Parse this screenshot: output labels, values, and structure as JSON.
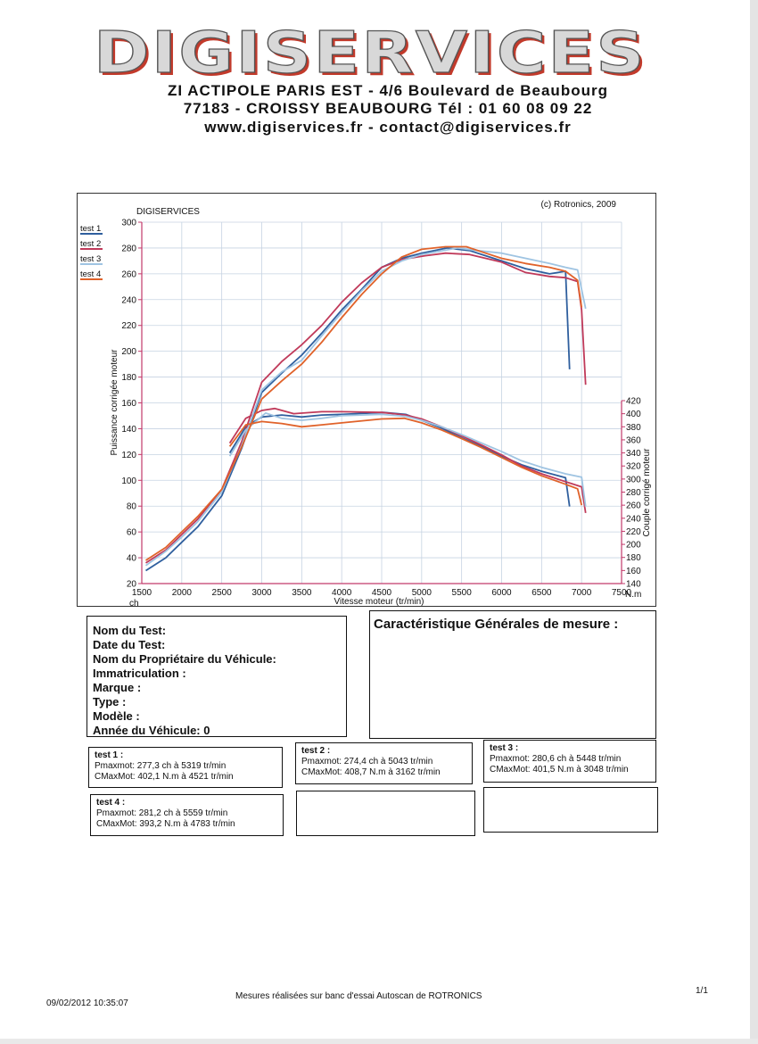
{
  "header": {
    "logo_text": "DIGISERVICES",
    "address_line1": "ZI ACTIPOLE PARIS EST - 4/6 Boulevard de Beaubourg",
    "address_line2": "77183 - CROISSY BEAUBOURG Tél : 01 60 08 09 22",
    "address_line3": "www.digiservices.fr - contact@digiservices.fr"
  },
  "chart_data": {
    "type": "line",
    "title": "DIGISERVICES",
    "copyright": "(c) Rotronics, 2009",
    "xlabel": "Vitesse moteur (tr/min)",
    "ylabel_left": "Puissance corrigée moteur",
    "ylabel_right": "Couple corrigé moteur",
    "unit_left": "ch",
    "unit_right": "N.m",
    "xlim": [
      1500,
      7500
    ],
    "ylim_left": [
      20,
      300
    ],
    "ylim_right": [
      140,
      420
    ],
    "x_ticks": [
      1500,
      2000,
      2500,
      3000,
      3500,
      4000,
      4500,
      5000,
      5500,
      6000,
      6500,
      7000,
      7500
    ],
    "y_left_ticks": [
      20,
      40,
      60,
      80,
      100,
      120,
      140,
      160,
      180,
      200,
      220,
      240,
      260,
      280,
      300
    ],
    "y_right_ticks": [
      140,
      160,
      180,
      200,
      220,
      240,
      260,
      280,
      300,
      320,
      340,
      360,
      380,
      400,
      420
    ],
    "grid": true,
    "legend_position": "top-left",
    "series": [
      {
        "name": "test 1",
        "color": "#2f5f9e",
        "power": [
          [
            1550,
            30
          ],
          [
            1800,
            40
          ],
          [
            2000,
            52
          ],
          [
            2200,
            64
          ],
          [
            2500,
            88
          ],
          [
            2750,
            125
          ],
          [
            3000,
            168
          ],
          [
            3250,
            183
          ],
          [
            3500,
            197
          ],
          [
            3750,
            214
          ],
          [
            4000,
            232
          ],
          [
            4250,
            248
          ],
          [
            4500,
            265
          ],
          [
            4750,
            272
          ],
          [
            5000,
            276
          ],
          [
            5319,
            280
          ],
          [
            5600,
            278
          ],
          [
            5800,
            274
          ],
          [
            6000,
            270
          ],
          [
            6300,
            264
          ],
          [
            6600,
            260
          ],
          [
            6800,
            262
          ],
          [
            6850,
            186
          ]
        ],
        "torque": [
          [
            2600,
            340
          ],
          [
            2800,
            380
          ],
          [
            3000,
            395
          ],
          [
            3250,
            398
          ],
          [
            3500,
            395
          ],
          [
            3750,
            398
          ],
          [
            4000,
            399
          ],
          [
            4521,
            402
          ],
          [
            4800,
            399
          ],
          [
            5000,
            390
          ],
          [
            5250,
            378
          ],
          [
            5500,
            363
          ],
          [
            5750,
            350
          ],
          [
            6000,
            335
          ],
          [
            6250,
            322
          ],
          [
            6500,
            312
          ],
          [
            6800,
            302
          ],
          [
            6850,
            258
          ]
        ]
      },
      {
        "name": "test 2",
        "color": "#c03a5a",
        "power": [
          [
            1550,
            36
          ],
          [
            1800,
            46
          ],
          [
            2000,
            58
          ],
          [
            2200,
            70
          ],
          [
            2500,
            93
          ],
          [
            2750,
            130
          ],
          [
            3000,
            176
          ],
          [
            3250,
            192
          ],
          [
            3500,
            205
          ],
          [
            3750,
            220
          ],
          [
            4000,
            238
          ],
          [
            4250,
            253
          ],
          [
            4500,
            265
          ],
          [
            4750,
            271
          ],
          [
            5043,
            274
          ],
          [
            5300,
            276
          ],
          [
            5600,
            275
          ],
          [
            5800,
            272
          ],
          [
            6000,
            269
          ],
          [
            6300,
            261
          ],
          [
            6600,
            258
          ],
          [
            6800,
            257
          ],
          [
            6950,
            254
          ],
          [
            7000,
            232
          ],
          [
            7050,
            174
          ]
        ],
        "torque": [
          [
            2600,
            355
          ],
          [
            2800,
            393
          ],
          [
            3000,
            405
          ],
          [
            3162,
            408
          ],
          [
            3400,
            400
          ],
          [
            3750,
            403
          ],
          [
            4000,
            403
          ],
          [
            4500,
            402
          ],
          [
            4800,
            398
          ],
          [
            5000,
            392
          ],
          [
            5250,
            380
          ],
          [
            5500,
            366
          ],
          [
            5750,
            352
          ],
          [
            6000,
            337
          ],
          [
            6250,
            320
          ],
          [
            6500,
            308
          ],
          [
            6800,
            296
          ],
          [
            7000,
            288
          ],
          [
            7050,
            248
          ]
        ]
      },
      {
        "name": "test 3",
        "color": "#9fc4e2",
        "power": [
          [
            1550,
            34
          ],
          [
            1800,
            45
          ],
          [
            2000,
            56
          ],
          [
            2200,
            68
          ],
          [
            2500,
            91
          ],
          [
            2750,
            127
          ],
          [
            3000,
            170
          ],
          [
            3250,
            184
          ],
          [
            3500,
            193
          ],
          [
            3750,
            212
          ],
          [
            4000,
            230
          ],
          [
            4250,
            247
          ],
          [
            4500,
            262
          ],
          [
            4750,
            270
          ],
          [
            5000,
            275
          ],
          [
            5448,
            280
          ],
          [
            5700,
            278
          ],
          [
            6000,
            276
          ],
          [
            6300,
            272
          ],
          [
            6600,
            268
          ],
          [
            6800,
            265
          ],
          [
            6950,
            263
          ],
          [
            7050,
            233
          ]
        ],
        "torque": [
          [
            2600,
            335
          ],
          [
            2800,
            375
          ],
          [
            3048,
            401
          ],
          [
            3250,
            393
          ],
          [
            3500,
            390
          ],
          [
            3750,
            393
          ],
          [
            4000,
            397
          ],
          [
            4500,
            399
          ],
          [
            4800,
            396
          ],
          [
            5000,
            390
          ],
          [
            5250,
            380
          ],
          [
            5500,
            368
          ],
          [
            5750,
            355
          ],
          [
            6000,
            342
          ],
          [
            6250,
            328
          ],
          [
            6500,
            318
          ],
          [
            6800,
            308
          ],
          [
            7000,
            303
          ],
          [
            7050,
            258
          ]
        ]
      },
      {
        "name": "test 4",
        "color": "#e0622a",
        "power": [
          [
            1550,
            38
          ],
          [
            1800,
            48
          ],
          [
            2000,
            60
          ],
          [
            2200,
            72
          ],
          [
            2500,
            93
          ],
          [
            2750,
            126
          ],
          [
            3000,
            163
          ],
          [
            3250,
            177
          ],
          [
            3500,
            190
          ],
          [
            3750,
            207
          ],
          [
            4000,
            226
          ],
          [
            4250,
            244
          ],
          [
            4500,
            260
          ],
          [
            4750,
            273
          ],
          [
            5000,
            279
          ],
          [
            5300,
            281
          ],
          [
            5559,
            281
          ],
          [
            5800,
            276
          ],
          [
            6000,
            272
          ],
          [
            6300,
            268
          ],
          [
            6600,
            265
          ],
          [
            6800,
            262
          ],
          [
            6950,
            255
          ],
          [
            7000,
            234
          ]
        ],
        "torque": [
          [
            2600,
            350
          ],
          [
            2800,
            383
          ],
          [
            3000,
            388
          ],
          [
            3250,
            385
          ],
          [
            3500,
            380
          ],
          [
            3750,
            383
          ],
          [
            4000,
            386
          ],
          [
            4500,
            392
          ],
          [
            4783,
            393
          ],
          [
            5000,
            386
          ],
          [
            5250,
            375
          ],
          [
            5500,
            362
          ],
          [
            5750,
            348
          ],
          [
            6000,
            333
          ],
          [
            6250,
            318
          ],
          [
            6500,
            305
          ],
          [
            6800,
            292
          ],
          [
            6950,
            285
          ],
          [
            7000,
            260
          ]
        ]
      }
    ]
  },
  "vehicle": {
    "test_name": "Nom du Test:",
    "test_date": "Date du Test:",
    "owner": "Nom du Propriétaire du Véhicule:",
    "registration": "Immatriculation  :",
    "brand": "Marque  :",
    "type": "Type  :",
    "model": "Modèle  :",
    "year": "Année du Véhicule: 0"
  },
  "measure": {
    "title": "Caractéristique Générales de mesure :"
  },
  "tests": [
    {
      "title": "test 1 :",
      "power": "Pmaxmot: 277,3 ch à 5319 tr/min",
      "torque": "CMaxMot: 402,1 N.m à 4521 tr/min"
    },
    {
      "title": "test 2 :",
      "power": "Pmaxmot: 274,4 ch à 5043 tr/min",
      "torque": "CMaxMot: 408,7 N.m à 3162 tr/min"
    },
    {
      "title": "test 3 :",
      "power": "Pmaxmot: 280,6 ch à 5448 tr/min",
      "torque": "CMaxMot: 401,5 N.m à 3048 tr/min"
    },
    {
      "title": "test 4 :",
      "power": "Pmaxmot: 281,2 ch à 5559 tr/min",
      "torque": "CMaxMot: 393,2 N.m à 4783 tr/min"
    }
  ],
  "footer": {
    "datetime": "09/02/2012 10:35:07",
    "note": "Mesures réalisées sur banc d'essai Autoscan de ROTRONICS",
    "page": "1/1"
  }
}
